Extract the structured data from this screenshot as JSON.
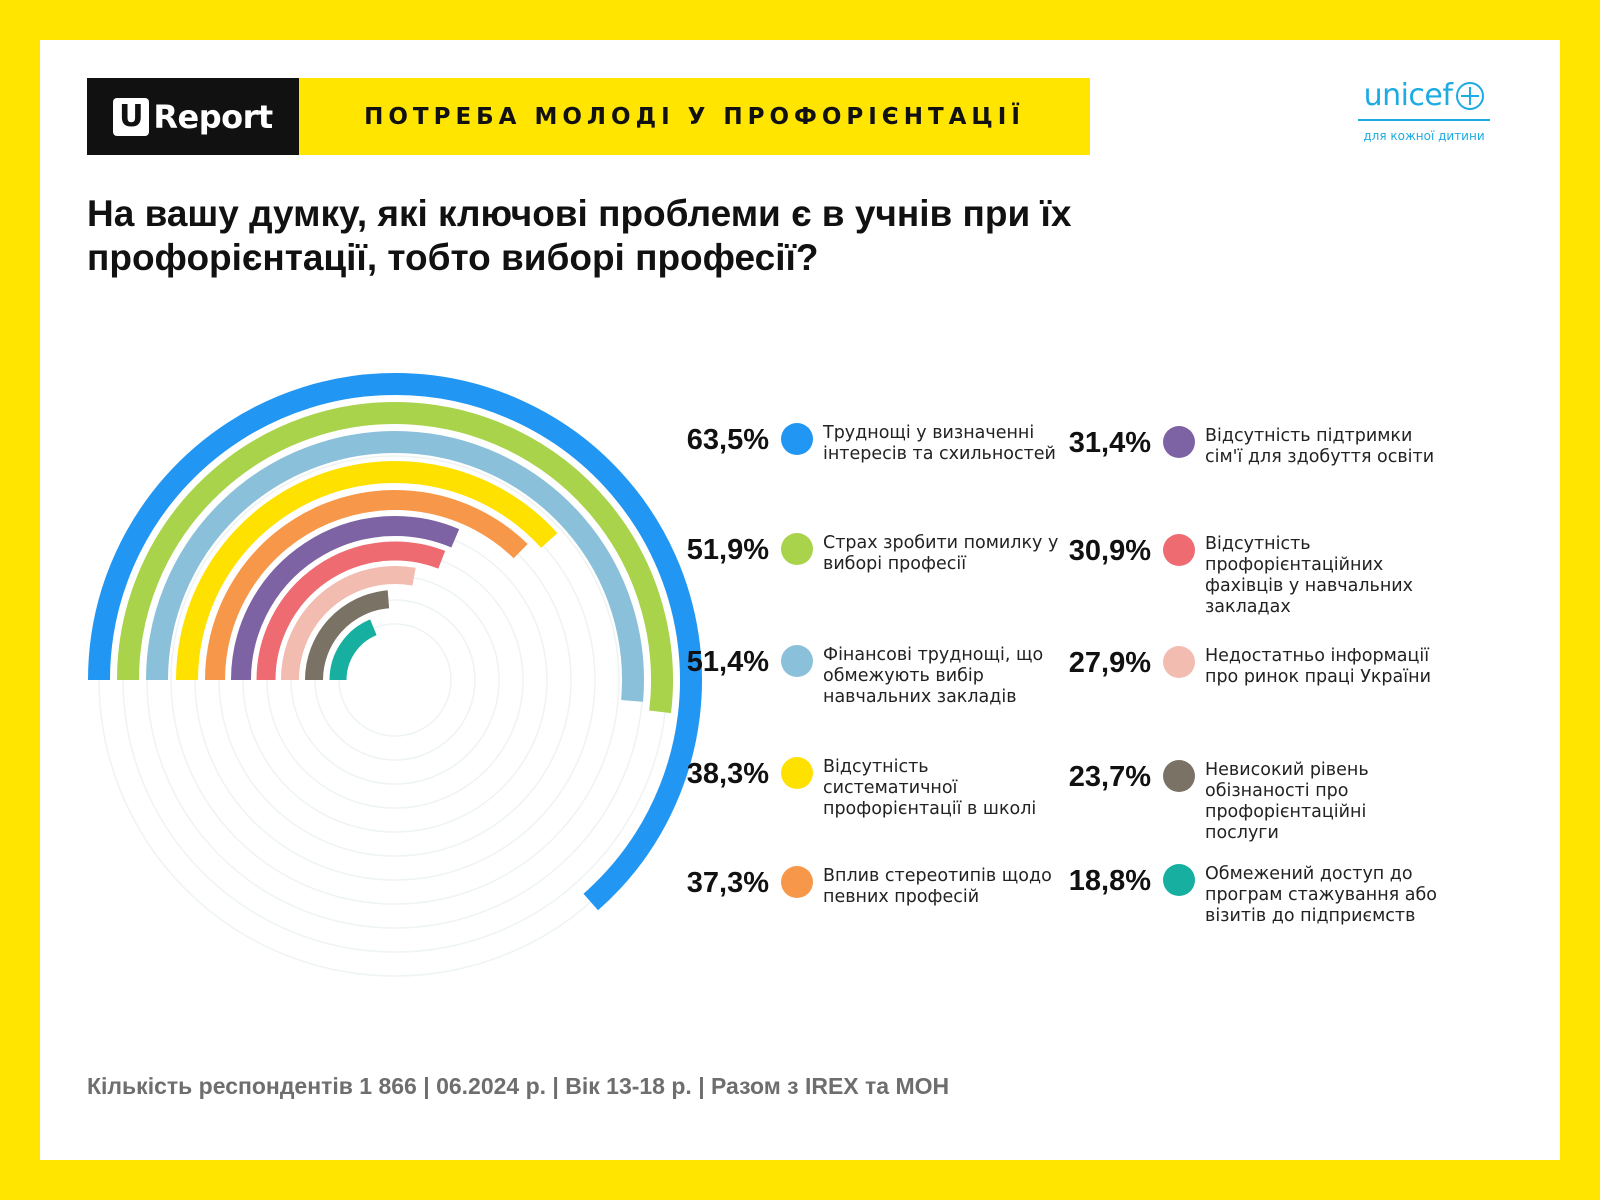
{
  "banner": {
    "brand_letter": "U",
    "brand_name": "Report",
    "title": "ПОТРЕБА МОЛОДІ У ПРОФОРІЄНТАЦІЇ"
  },
  "unicef": {
    "name": "unicef",
    "tagline": "для кожної дитини"
  },
  "question": "На вашу думку, які ключові   проблеми є в учнів при їх профорієнтації, тобто виборі професії?",
  "chart_data": {
    "type": "radial-bar",
    "title": "На вашу думку, які ключові   проблеми є в учнів при їх профорієнтації, тобто виборі професії?",
    "unit": "%",
    "items": [
      {
        "label": "Труднощі у визначенні інтересів та схильностей",
        "value": 63.5,
        "display": "63,5%",
        "color": "#2196F3"
      },
      {
        "label": "Страх зробити помилку у виборі професії",
        "value": 51.9,
        "display": "51,9%",
        "color": "#A8D34A"
      },
      {
        "label": "Фінансові труднощі, що обмежують вибір навчальних закладів",
        "value": 51.4,
        "display": "51,4%",
        "color": "#8BC0DA"
      },
      {
        "label": "Відсутність систематичної профорієнтації в школі",
        "value": 38.3,
        "display": "38,3%",
        "color": "#FFE100"
      },
      {
        "label": "Вплив стереотипів щодо певних професій",
        "value": 37.3,
        "display": "37,3%",
        "color": "#F7974A"
      },
      {
        "label": "Відсутність підтримки сім'ї для здобуття освіти",
        "value": 31.4,
        "display": "31,4%",
        "color": "#7E63A4"
      },
      {
        "label": "Відсутність профорієнтаційних фахівців у навчальних закладах",
        "value": 30.9,
        "display": "30,9%",
        "color": "#EE6B72"
      },
      {
        "label": "Недостатньо інформації про ринок праці України",
        "value": 27.9,
        "display": "27,9%",
        "color": "#F2BCB0"
      },
      {
        "label": "Невисокий рівень обізнаності про профорієнтаційні послуги",
        "value": 23.7,
        "display": "23,7%",
        "color": "#7A7264"
      },
      {
        "label": "Обмежений доступ до програм стажування або візитів до підприємств",
        "value": 18.8,
        "display": "18,8%",
        "color": "#17AFA0"
      }
    ]
  },
  "footer": "Кількість респондентів 1 866 | 06.2024 р. | Вік 13-18 р. | Разом з IREX та МОН"
}
